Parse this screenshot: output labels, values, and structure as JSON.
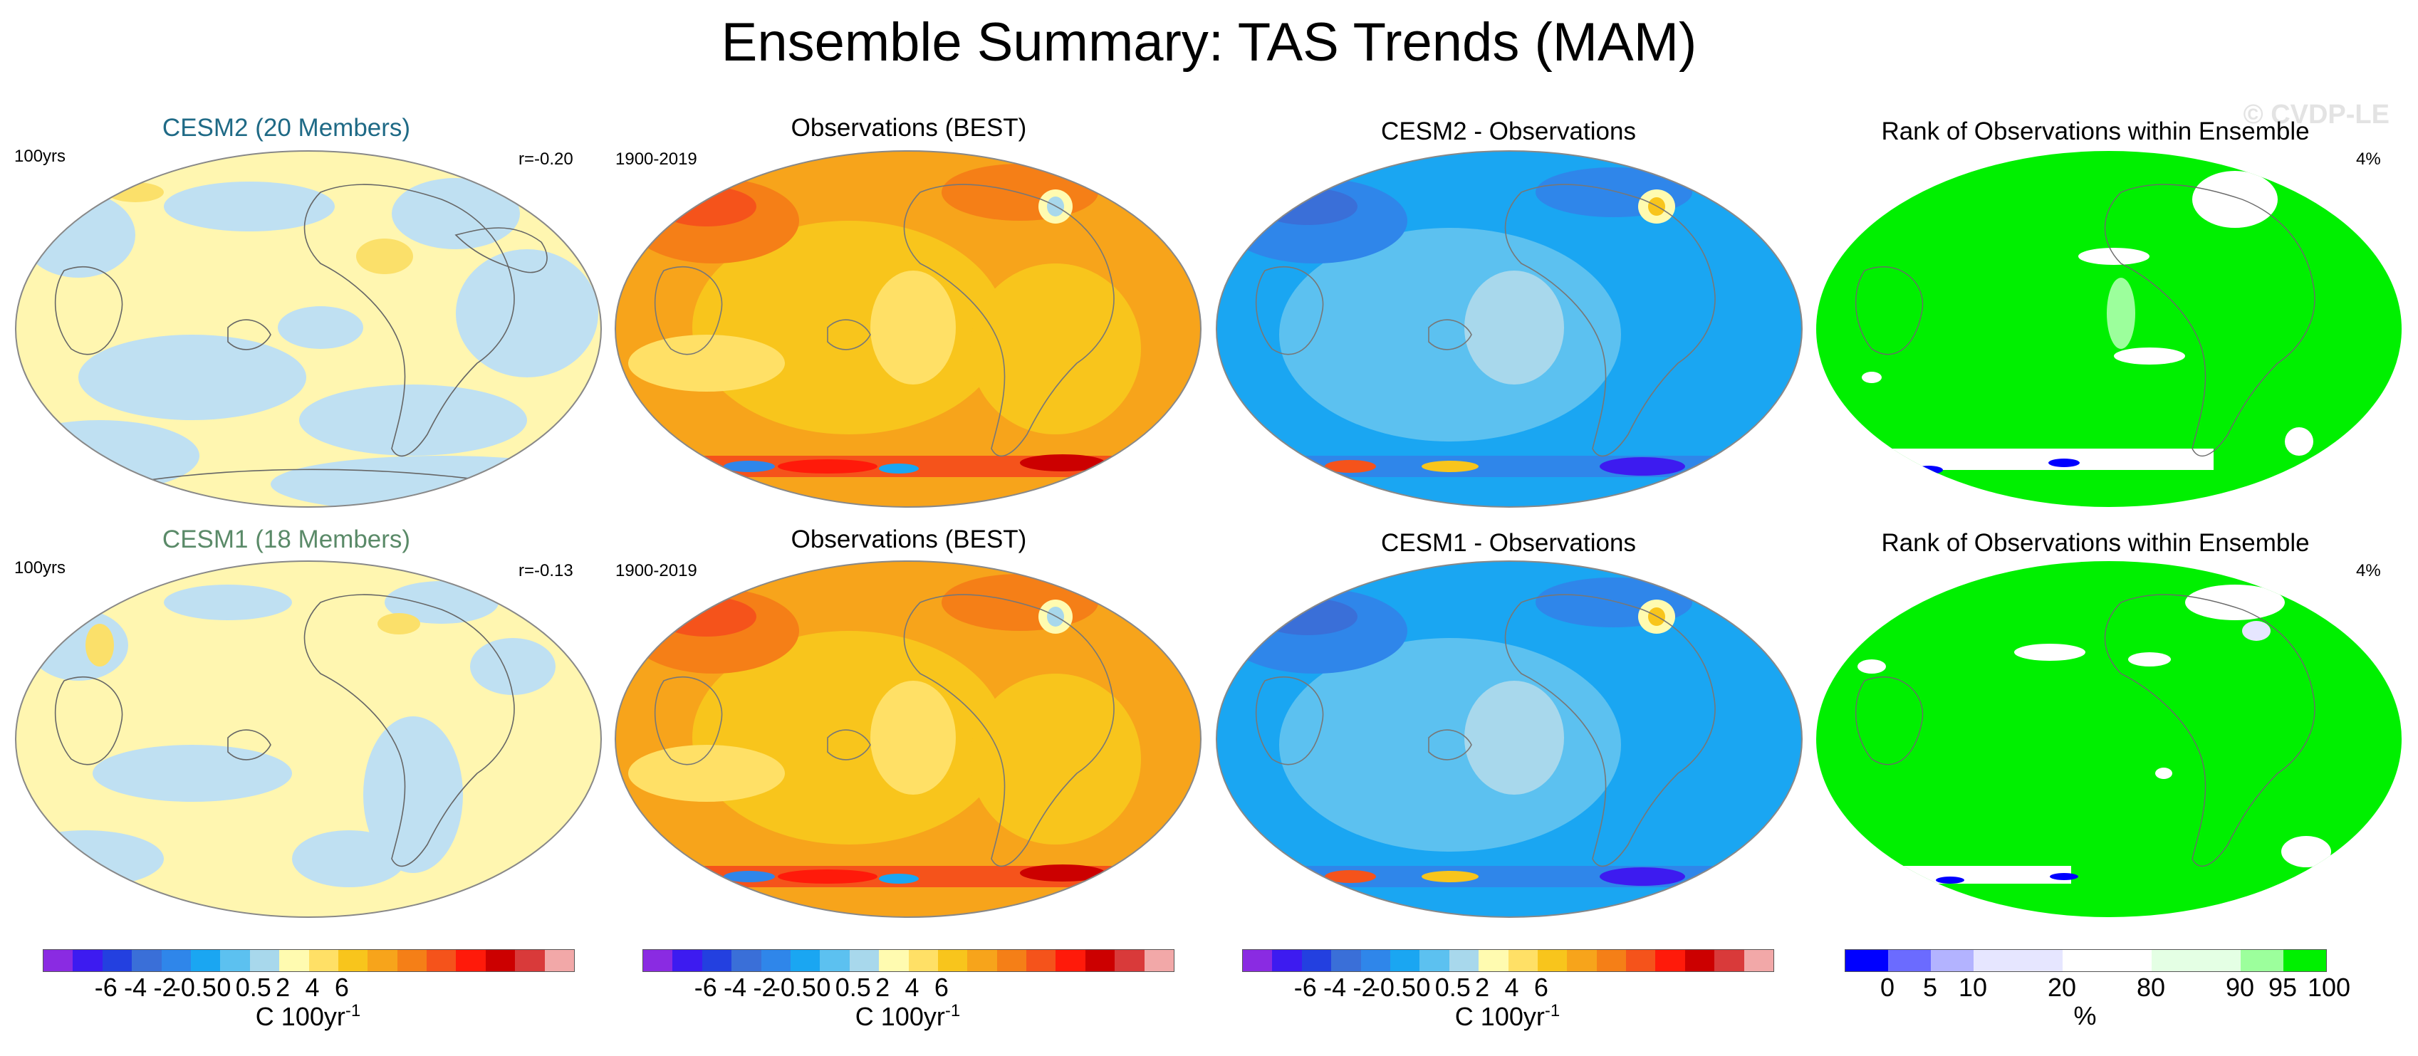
{
  "title": "Ensemble Summary: TAS Trends (MAM)",
  "watermark": "© CVDP-LE",
  "rows": [
    {
      "panels": [
        {
          "title": "CESM2 (20 Members)",
          "title_color": "#1f6a86",
          "left_label": "100yrs",
          "right_label": "r=-0.20"
        },
        {
          "title": "Observations (BEST)",
          "title_color": "#000000",
          "left_label": "1900-2019",
          "right_label": ""
        },
        {
          "title": "CESM2 - Observations",
          "title_color": "#000000",
          "left_label": "",
          "right_label": ""
        },
        {
          "title": "Rank of Observations within Ensemble",
          "title_color": "#000000",
          "left_label": "",
          "right_label": "4%"
        }
      ]
    },
    {
      "panels": [
        {
          "title": "CESM1 (18 Members)",
          "title_color": "#5a8a68",
          "left_label": "100yrs",
          "right_label": "r=-0.13"
        },
        {
          "title": "Observations (BEST)",
          "title_color": "#000000",
          "left_label": "1900-2019",
          "right_label": ""
        },
        {
          "title": "CESM1 - Observations",
          "title_color": "#000000",
          "left_label": "",
          "right_label": ""
        },
        {
          "title": "Rank of Observations within Ensemble",
          "title_color": "#000000",
          "left_label": "",
          "right_label": "4%"
        }
      ]
    }
  ],
  "trend_colorbar": {
    "colors": [
      "#8a2be2",
      "#3d1bf0",
      "#2340e0",
      "#3a6fd8",
      "#2f86ea",
      "#1aa6f2",
      "#5cc1f0",
      "#a8d8ec",
      "#fffbb0",
      "#ffe066",
      "#f8c51c",
      "#f7a41b",
      "#f57f17",
      "#f5531b",
      "#ff1a0a",
      "#cc0000",
      "#d93a3a",
      "#f2a8a8"
    ],
    "ticks": [
      "-6",
      "-4",
      "-2",
      "-0.5",
      "0",
      "0.5",
      "2",
      "4",
      "6"
    ],
    "label": "C 100yr",
    "label_sup": "-1"
  },
  "rank_colorbar": {
    "colors": [
      "#0000ff",
      "#6b6bff",
      "#b3b3ff",
      "#e6e6ff",
      "#ffffff",
      "#e4ffe4",
      "#9cff9c",
      "#00f000"
    ],
    "ticks": [
      "0",
      "5",
      "10",
      "20",
      "80",
      "90",
      "95",
      "100"
    ],
    "label": "%"
  },
  "icons": {
    "coastline": "coastline-icon"
  }
}
